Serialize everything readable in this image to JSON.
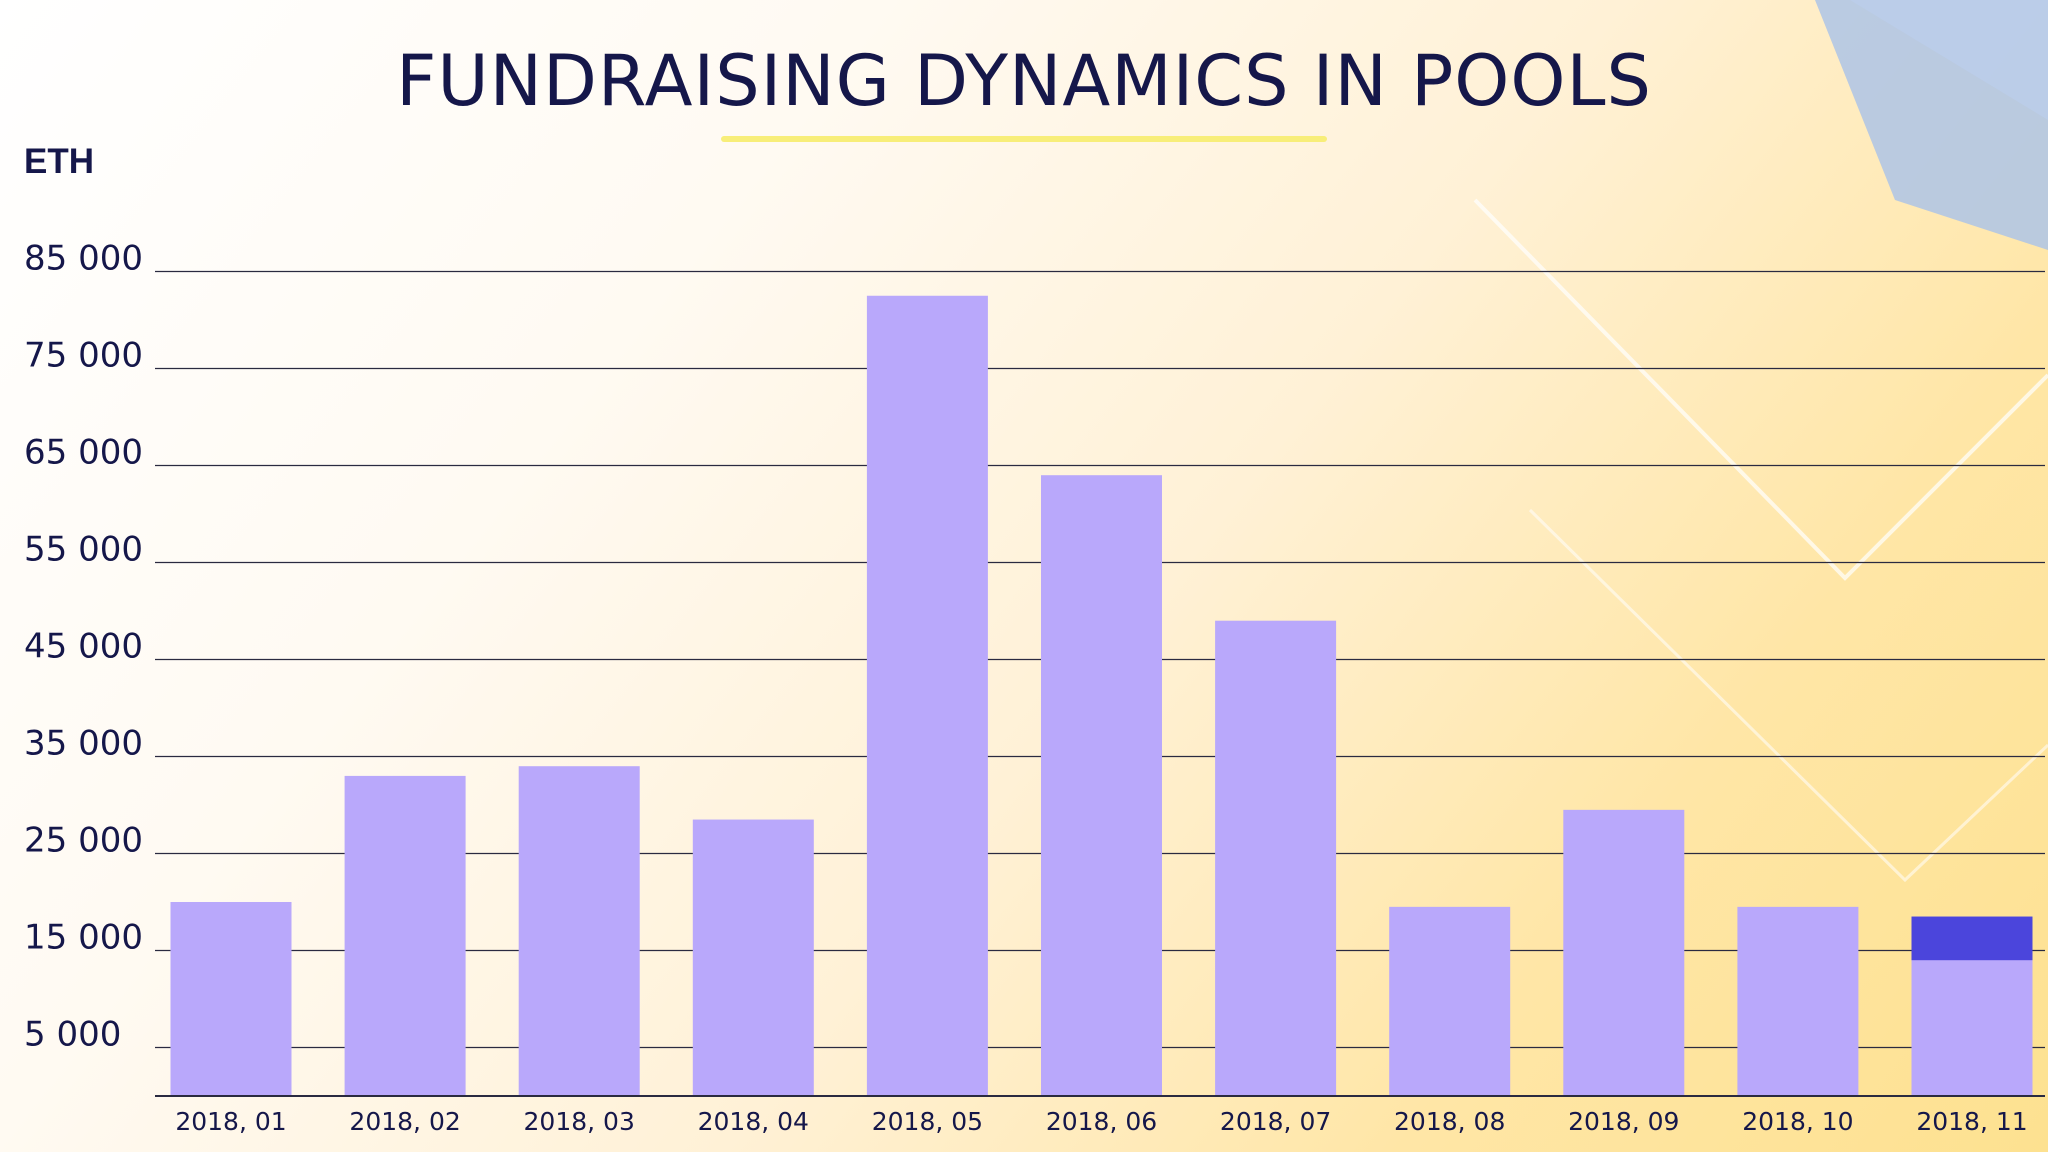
{
  "title": "FUNDRAISING DYNAMICS IN POOLS",
  "unit": "ETH",
  "colors": {
    "bar": "#b9a8fb",
    "highlight": "#4b45dc",
    "text": "#15174a",
    "grid": "#2a2a40",
    "underline": "#f8ee79"
  },
  "chart_data": {
    "type": "bar",
    "title": "FUNDRAISING DYNAMICS IN POOLS",
    "ylabel": "ETH",
    "xlabel": "",
    "categories": [
      "2018, 01",
      "2018, 02",
      "2018, 03",
      "2018, 04",
      "2018, 05",
      "2018, 06",
      "2018, 07",
      "2018, 08",
      "2018, 09",
      "2018, 10",
      "2018, 11"
    ],
    "values": [
      20000,
      33000,
      34000,
      28500,
      82500,
      64000,
      49000,
      19500,
      29500,
      19500,
      18500
    ],
    "highlight_segment": {
      "category": "2018, 11",
      "from": 14000,
      "to": 18500
    },
    "yticks": [
      5000,
      15000,
      25000,
      35000,
      45000,
      55000,
      65000,
      75000,
      85000
    ],
    "ytick_labels": [
      "5 000",
      "15 000",
      "25 000",
      "35 000",
      "45 000",
      "55 000",
      "65 000",
      "75 000",
      "85 000"
    ],
    "ylim": [
      0,
      85000
    ],
    "grid": true,
    "legend": "none"
  }
}
